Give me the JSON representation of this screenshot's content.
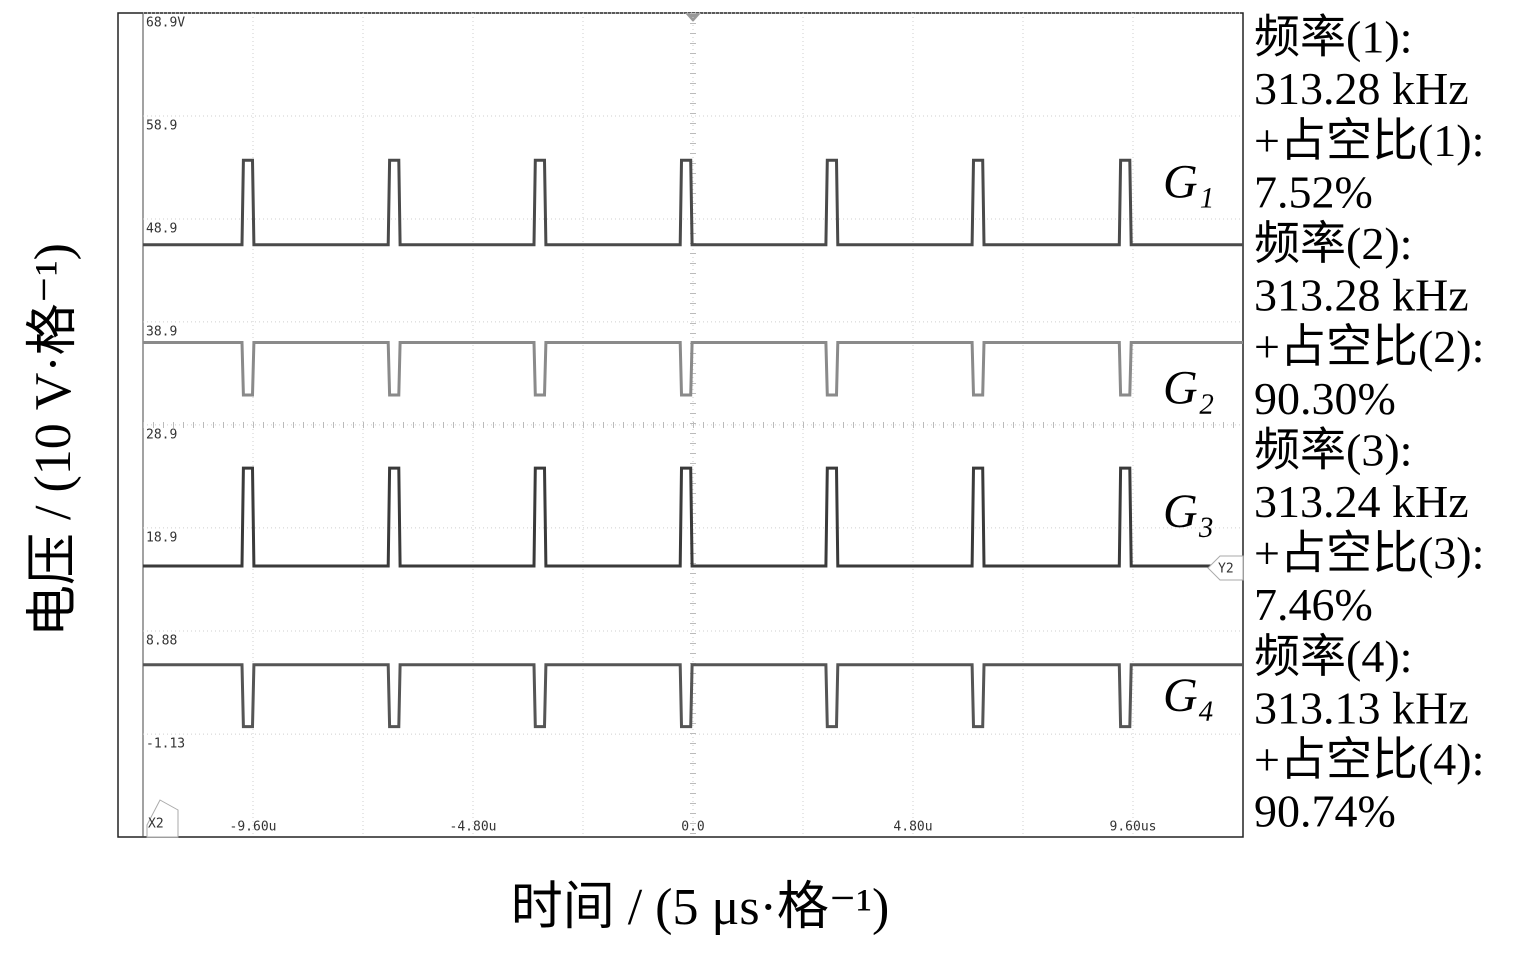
{
  "chart_data": {
    "type": "line",
    "xlabel": "时间 / (5 μs·格⁻¹)",
    "ylabel": "电压 / (10 V·格⁻¹)",
    "xlim": [
      -12,
      12
    ],
    "xticks": [
      {
        "value": -9.6,
        "label": "-9.60u"
      },
      {
        "value": -4.8,
        "label": "-4.80u"
      },
      {
        "value": 0,
        "label": "0.0"
      },
      {
        "value": 4.8,
        "label": "4.80u"
      },
      {
        "value": 9.6,
        "label": "9.60us"
      }
    ],
    "ylim": [
      -11.12,
      68.9
    ],
    "yticks": [
      {
        "value": 68.9,
        "label": "68.9V"
      },
      58.9,
      48.9,
      38.9,
      28.9,
      18.9,
      8.88,
      -1.13
    ],
    "grid": true,
    "x": [
      -12,
      -9.84,
      -9.81,
      -9.61,
      -9.58,
      -6.65,
      -6.62,
      -6.42,
      -6.39,
      -3.47,
      -3.44,
      -3.24,
      -3.21,
      -0.28,
      -0.25,
      -0.05,
      -0.02,
      2.9,
      2.93,
      3.13,
      3.16,
      6.09,
      6.12,
      6.32,
      6.35,
      9.3,
      9.33,
      9.53,
      9.56,
      12
    ],
    "series": [
      {
        "name": "G₁",
        "color": "#4a4a4a",
        "values": [
          46.4,
          46.4,
          54.6,
          54.6,
          46.4,
          46.4,
          54.6,
          54.6,
          46.4,
          46.4,
          54.6,
          54.6,
          46.4,
          46.4,
          54.6,
          54.6,
          46.4,
          46.4,
          54.6,
          54.6,
          46.4,
          46.4,
          54.6,
          54.6,
          46.4,
          46.4,
          54.6,
          54.6,
          46.4,
          46.4
        ]
      },
      {
        "name": "G₂",
        "color": "#8a8a8a",
        "values": [
          36.9,
          36.9,
          31.8,
          31.8,
          36.9,
          36.9,
          31.8,
          31.8,
          36.9,
          36.9,
          31.8,
          31.8,
          36.9,
          36.9,
          31.8,
          31.8,
          36.9,
          36.9,
          31.8,
          31.8,
          36.9,
          36.9,
          31.8,
          31.8,
          36.9,
          36.9,
          31.8,
          31.8,
          36.9,
          36.9
        ]
      },
      {
        "name": "G₃",
        "color": "#3a3a3a",
        "values": [
          15.2,
          15.2,
          24.7,
          24.7,
          15.2,
          15.2,
          24.7,
          24.7,
          15.2,
          15.2,
          24.7,
          24.7,
          15.2,
          15.2,
          24.7,
          24.7,
          15.2,
          15.2,
          24.7,
          24.7,
          15.2,
          15.2,
          24.7,
          24.7,
          15.2,
          15.2,
          24.7,
          24.7,
          15.2,
          15.2
        ]
      },
      {
        "name": "G₄",
        "color": "#555555",
        "values": [
          5.6,
          5.6,
          -0.4,
          -0.4,
          5.6,
          5.6,
          -0.4,
          -0.4,
          5.6,
          5.6,
          -0.4,
          -0.4,
          5.6,
          5.6,
          -0.4,
          -0.4,
          5.6,
          5.6,
          -0.4,
          -0.4,
          5.6,
          5.6,
          -0.4,
          -0.4,
          5.6,
          5.6,
          -0.4,
          -0.4,
          5.6,
          5.6
        ]
      }
    ],
    "cursors": [
      "X2",
      "Y2"
    ],
    "annotations": [
      "频率(1):",
      "313.28 kHz",
      "+占空比(1):",
      "7.52%",
      "频率(2):",
      "313.28 kHz",
      "+占空比(2):",
      "90.30%",
      "频率(3):",
      "313.24 kHz",
      "+占空比(3):",
      "7.46%",
      "频率(4):",
      "313.13 kHz",
      "+占空比(4):",
      "90.74%"
    ]
  }
}
